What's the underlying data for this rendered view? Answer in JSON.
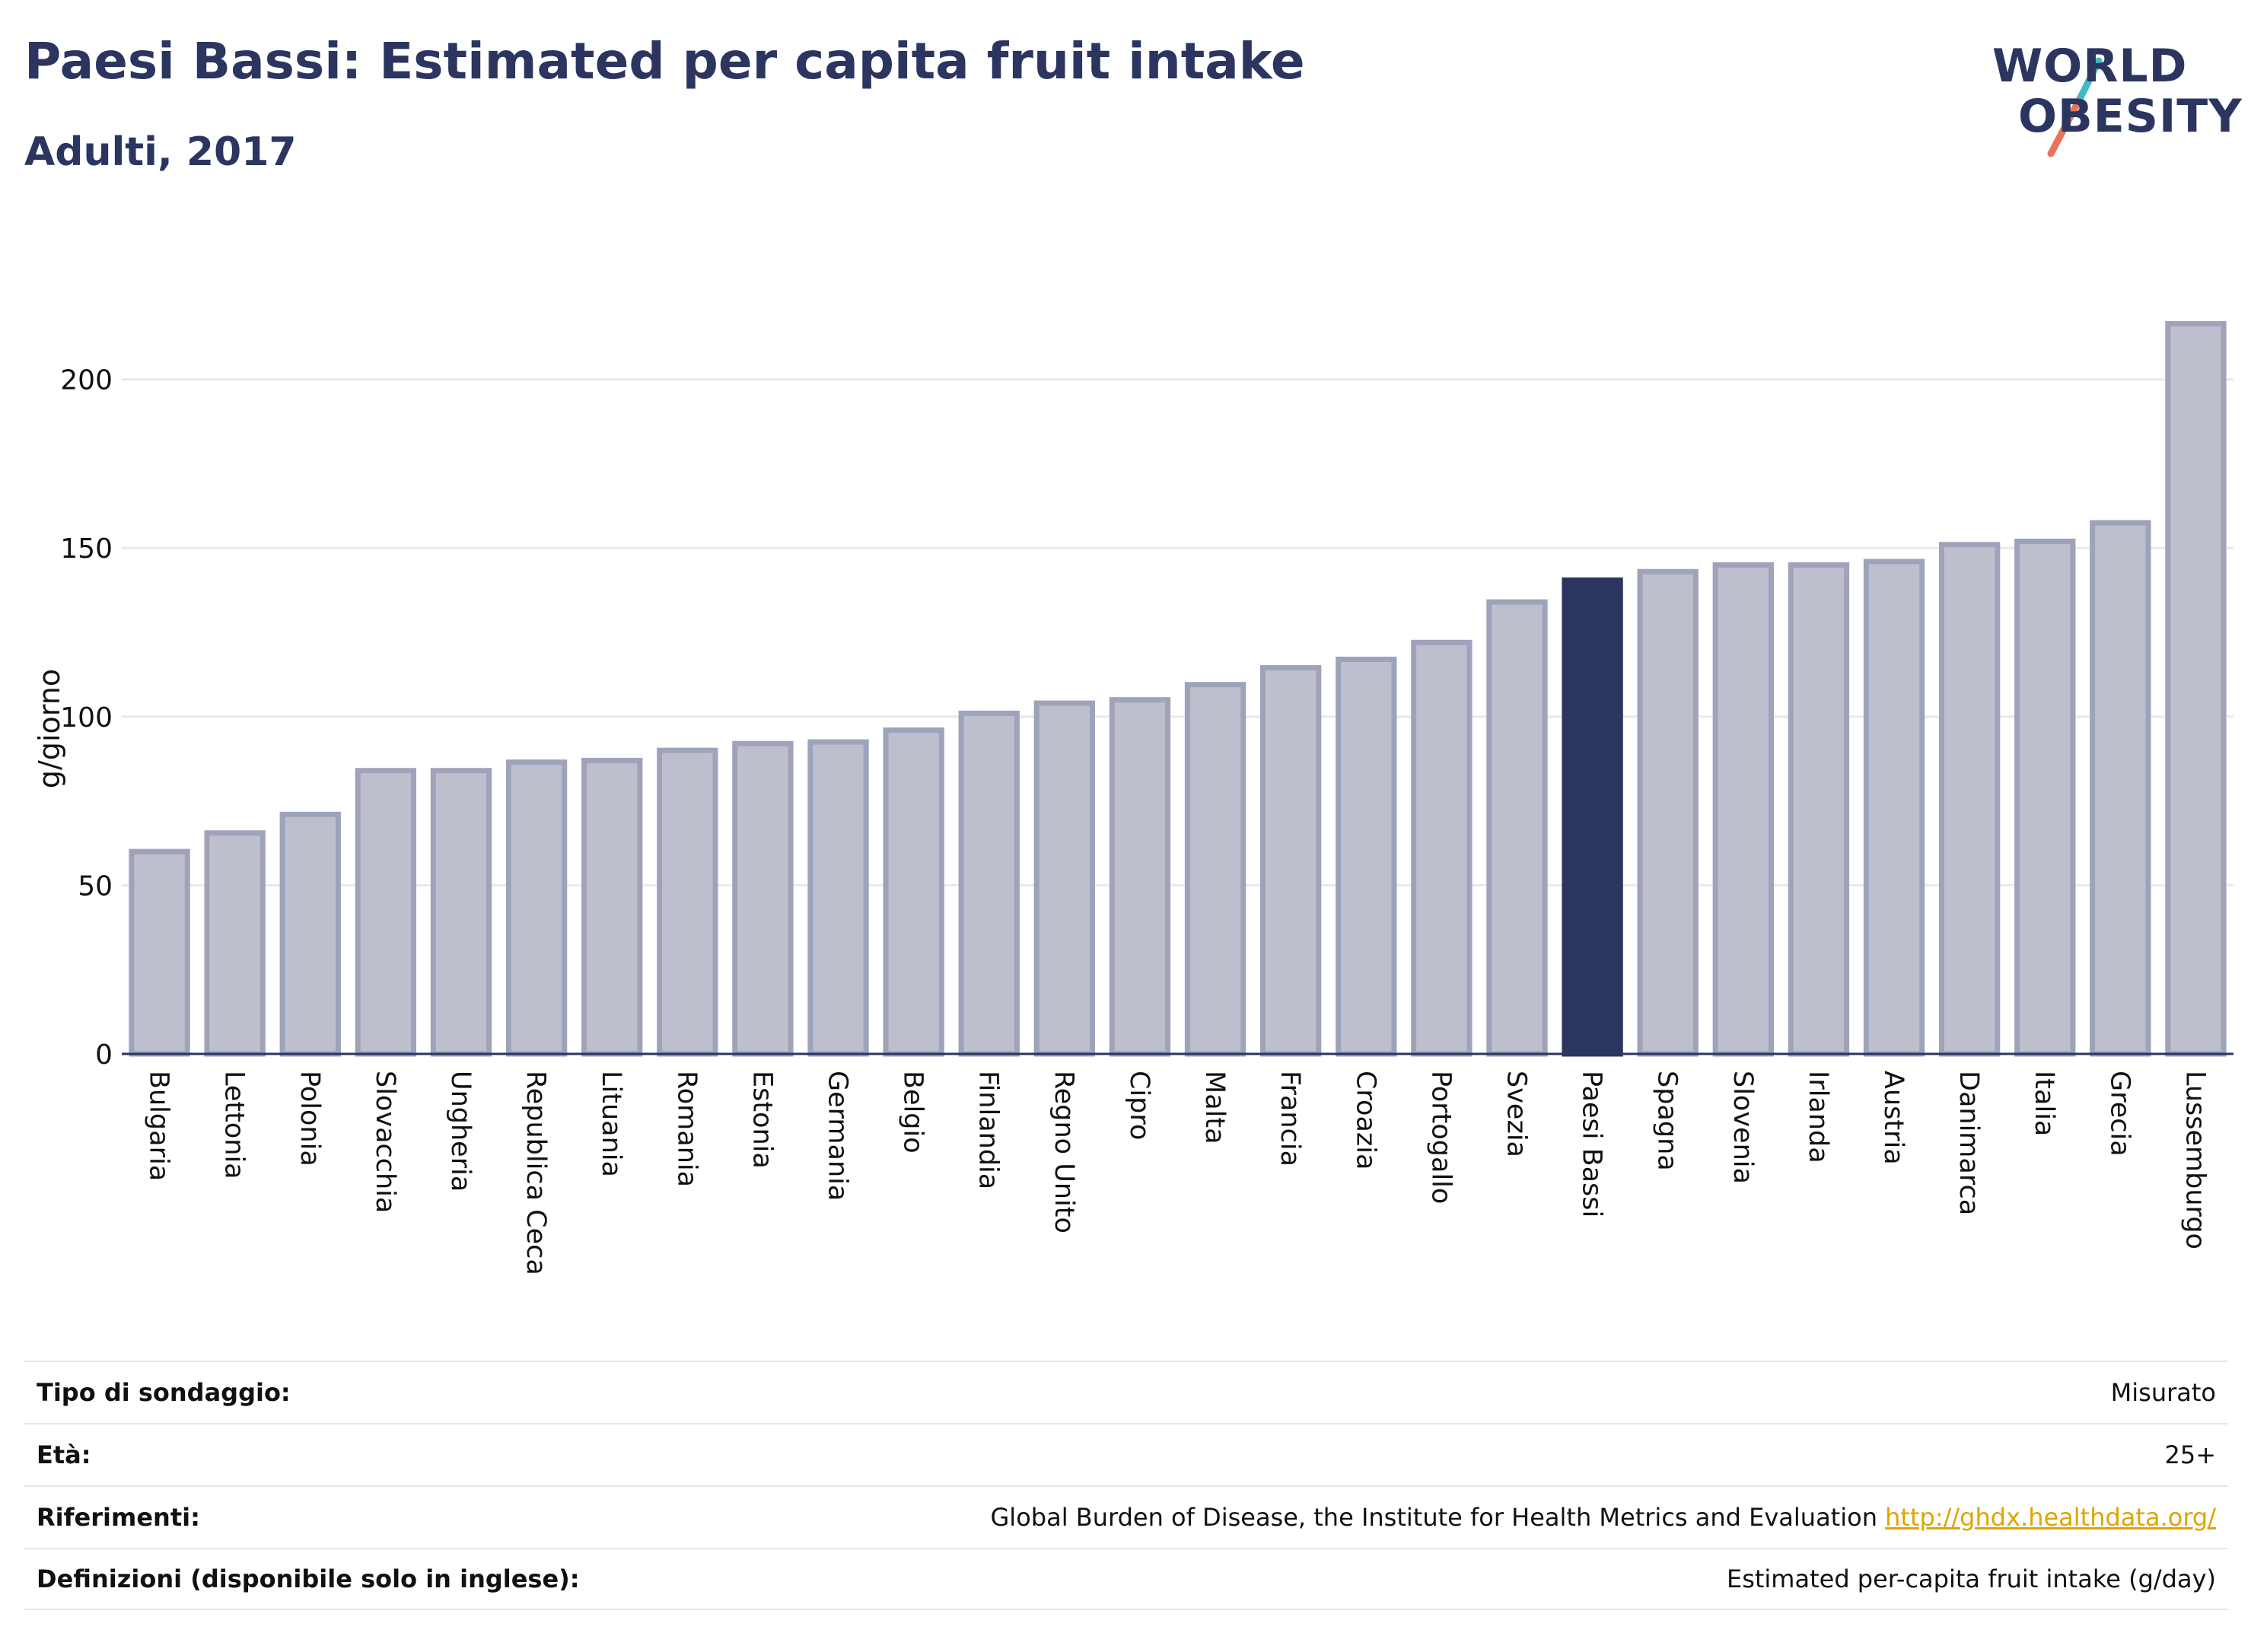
{
  "title": "Paesi Bassi: Estimated per capita fruit intake",
  "subtitle": "Adulti, 2017",
  "logo": {
    "line1": "WORLD",
    "line2": "OBESITY"
  },
  "colors": {
    "bar": "#bdc0cc",
    "bar_border": "#9ea3bb",
    "highlight": "#2b3560",
    "grid": "#e8e8ee",
    "axis": "#2b3560",
    "link": "#e0a400"
  },
  "chart_data": {
    "type": "bar",
    "ylabel": "g/giorno",
    "xlabel": "",
    "ylim": [
      0,
      220
    ],
    "yticks": [
      0,
      50,
      100,
      150,
      200
    ],
    "grid": true,
    "highlight": "Paesi Bassi",
    "categories": [
      "Bulgaria",
      "Lettonia",
      "Polonia",
      "Slovacchia",
      "Ungheria",
      "Republica Ceca",
      "Lituania",
      "Romania",
      "Estonia",
      "Germania",
      "Belgio",
      "Finlandia",
      "Regno Unito",
      "Cipro",
      "Malta",
      "Francia",
      "Croazia",
      "Portogallo",
      "Svezia",
      "Paesi Bassi",
      "Spagna",
      "Slovenia",
      "Irlanda",
      "Austria",
      "Danimarca",
      "Italia",
      "Grecia",
      "Lussemburgo"
    ],
    "values": [
      60,
      65.5,
      71,
      84,
      84,
      86.5,
      87,
      90,
      92,
      92.5,
      96,
      101,
      104,
      105,
      109.5,
      114.5,
      117,
      122,
      134,
      140.5,
      143,
      145,
      145,
      146,
      151,
      152,
      157.5,
      216.5
    ]
  },
  "info": [
    {
      "key": "Tipo di sondaggio:",
      "value": "Misurato"
    },
    {
      "key": "Età:",
      "value": "25+"
    },
    {
      "key": "Riferimenti:",
      "value": "Global Burden of Disease, the Institute for Health Metrics and Evaluation",
      "link": "http://ghdx.healthdata.org/"
    },
    {
      "key": "Definizioni (disponibile solo in inglese):",
      "value": "Estimated per-capita fruit intake (g/day)"
    }
  ]
}
